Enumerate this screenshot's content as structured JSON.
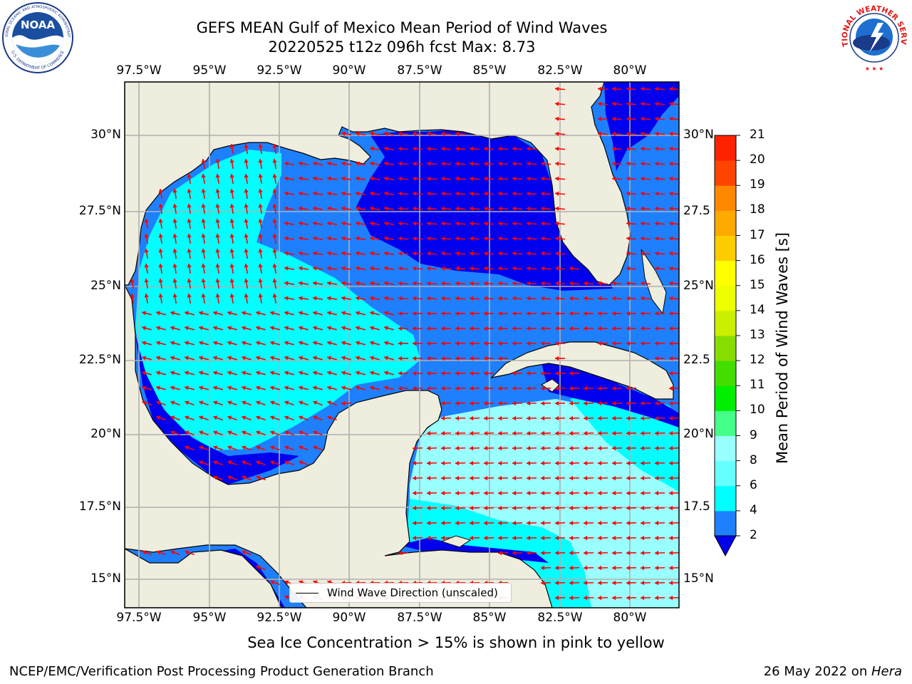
{
  "title": {
    "line1": "GEFS MEAN Gulf of Mexico Mean Period of Wind Waves",
    "line2": "20220525 t12z 096h fcst   Max: 8.73"
  },
  "map": {
    "lon_labels": [
      "97.5°W",
      "95°W",
      "92.5°W",
      "90°W",
      "87.5°W",
      "85°W",
      "82.5°W",
      "80°W"
    ],
    "lat_labels": [
      "30°N",
      "27.5°N",
      "25°N",
      "22.5°N",
      "20°N",
      "17.5°N",
      "15°N"
    ],
    "lat_labels_right": [
      "30°N",
      "27.5",
      "25°N",
      "22.5",
      "20°N",
      "17.5",
      "15°N"
    ],
    "legend_label": "Wind Wave Direction (unscaled)",
    "colors": {
      "land": "#efedde",
      "ocean_dark": "#0000ee",
      "ocean_blue": "#1e80ff",
      "ocean_cyan": "#00ffff",
      "ocean_lightcyan": "#99ffff",
      "arrow": "#ff0000"
    }
  },
  "colorbar": {
    "title": "Mean Period of Wind Waves [s]",
    "levels": [
      "2",
      "4",
      "6",
      "8",
      "9",
      "10",
      "11",
      "12",
      "13",
      "14",
      "15",
      "16",
      "17",
      "18",
      "19",
      "20",
      "21"
    ],
    "colors": [
      "#1e80ff",
      "#00ccff",
      "#00ffff",
      "#66ffff",
      "#99ffff",
      "#44ff88",
      "#00ee00",
      "#44dd00",
      "#88dd00",
      "#ccee00",
      "#eeff00",
      "#ffff00",
      "#ffcc00",
      "#ffaa00",
      "#ff8800",
      "#ff4400",
      "#ff2200",
      "#ff0000"
    ],
    "extend_color": "#0000ee"
  },
  "caption": "Sea Ice Concentration > 15% is shown in pink to yellow",
  "footer": {
    "left": "NCEP/EMC/Verification Post Processing Product Generation Branch",
    "right_prefix": "26 May 2022 on ",
    "right_machine": "Hera"
  },
  "logos": {
    "noaa_text": "NOAA",
    "noaa_ring_top": "NATIONAL OCEANIC AND ATMOSPHERIC ADMINISTRATION",
    "noaa_ring_bottom": "U.S. DEPARTMENT OF COMMERCE",
    "nws_ring": "NATIONAL WEATHER SERVICE"
  }
}
